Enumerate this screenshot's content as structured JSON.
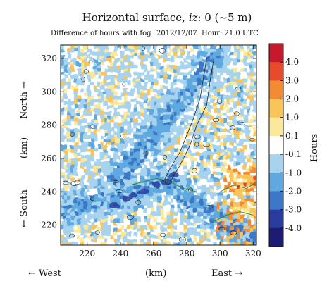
{
  "chart_data": {
    "type": "heatmap",
    "title": "Horizontal surface, iz: 0 (~5 m)",
    "title_parts": {
      "prefix": "Horizontal surface, ",
      "var": "iz",
      "suffix": ": 0 (~5 m)"
    },
    "subtitle": {
      "variable": "Difference of hours with fog",
      "date": "2012/12/07",
      "hour": "Hour: 21.0 UTC"
    },
    "xlim": [
      204,
      322
    ],
    "ylim": [
      208,
      328
    ],
    "xticks": [
      220,
      240,
      260,
      280,
      300,
      320
    ],
    "yticks": [
      220,
      240,
      260,
      280,
      300,
      320
    ],
    "xlabel": {
      "left": "← West",
      "center": "(km)",
      "right": "East →"
    },
    "ylabel": {
      "top": "North →",
      "center": "(km)",
      "bottom": "← South"
    },
    "colorbar": {
      "label": "Hours",
      "ticks": [
        "4.0",
        "3.0",
        "2.0",
        "1.0",
        "0.1",
        "-0.1",
        "-1.0",
        "-2.0",
        "-3.0",
        "-4.0"
      ],
      "colors": [
        "#c8182b",
        "#e84a2c",
        "#f38a34",
        "#f9c55a",
        "#fbe89a",
        "#ffffff",
        "#a7d3ee",
        "#5fa9e0",
        "#3c78c7",
        "#2a3d9e",
        "#1b1c72"
      ]
    },
    "colors": {
      "positive_light": "#fbe89a",
      "positive_mid": "#f9c55a",
      "negative_light": "#a7d3ee",
      "negative_mid": "#5fa9e0",
      "negative_strong": "#3c78c7",
      "negative_max": "#2a3d9e",
      "contour_black": "#222222",
      "contour_green": "#2e8b2e"
    }
  }
}
